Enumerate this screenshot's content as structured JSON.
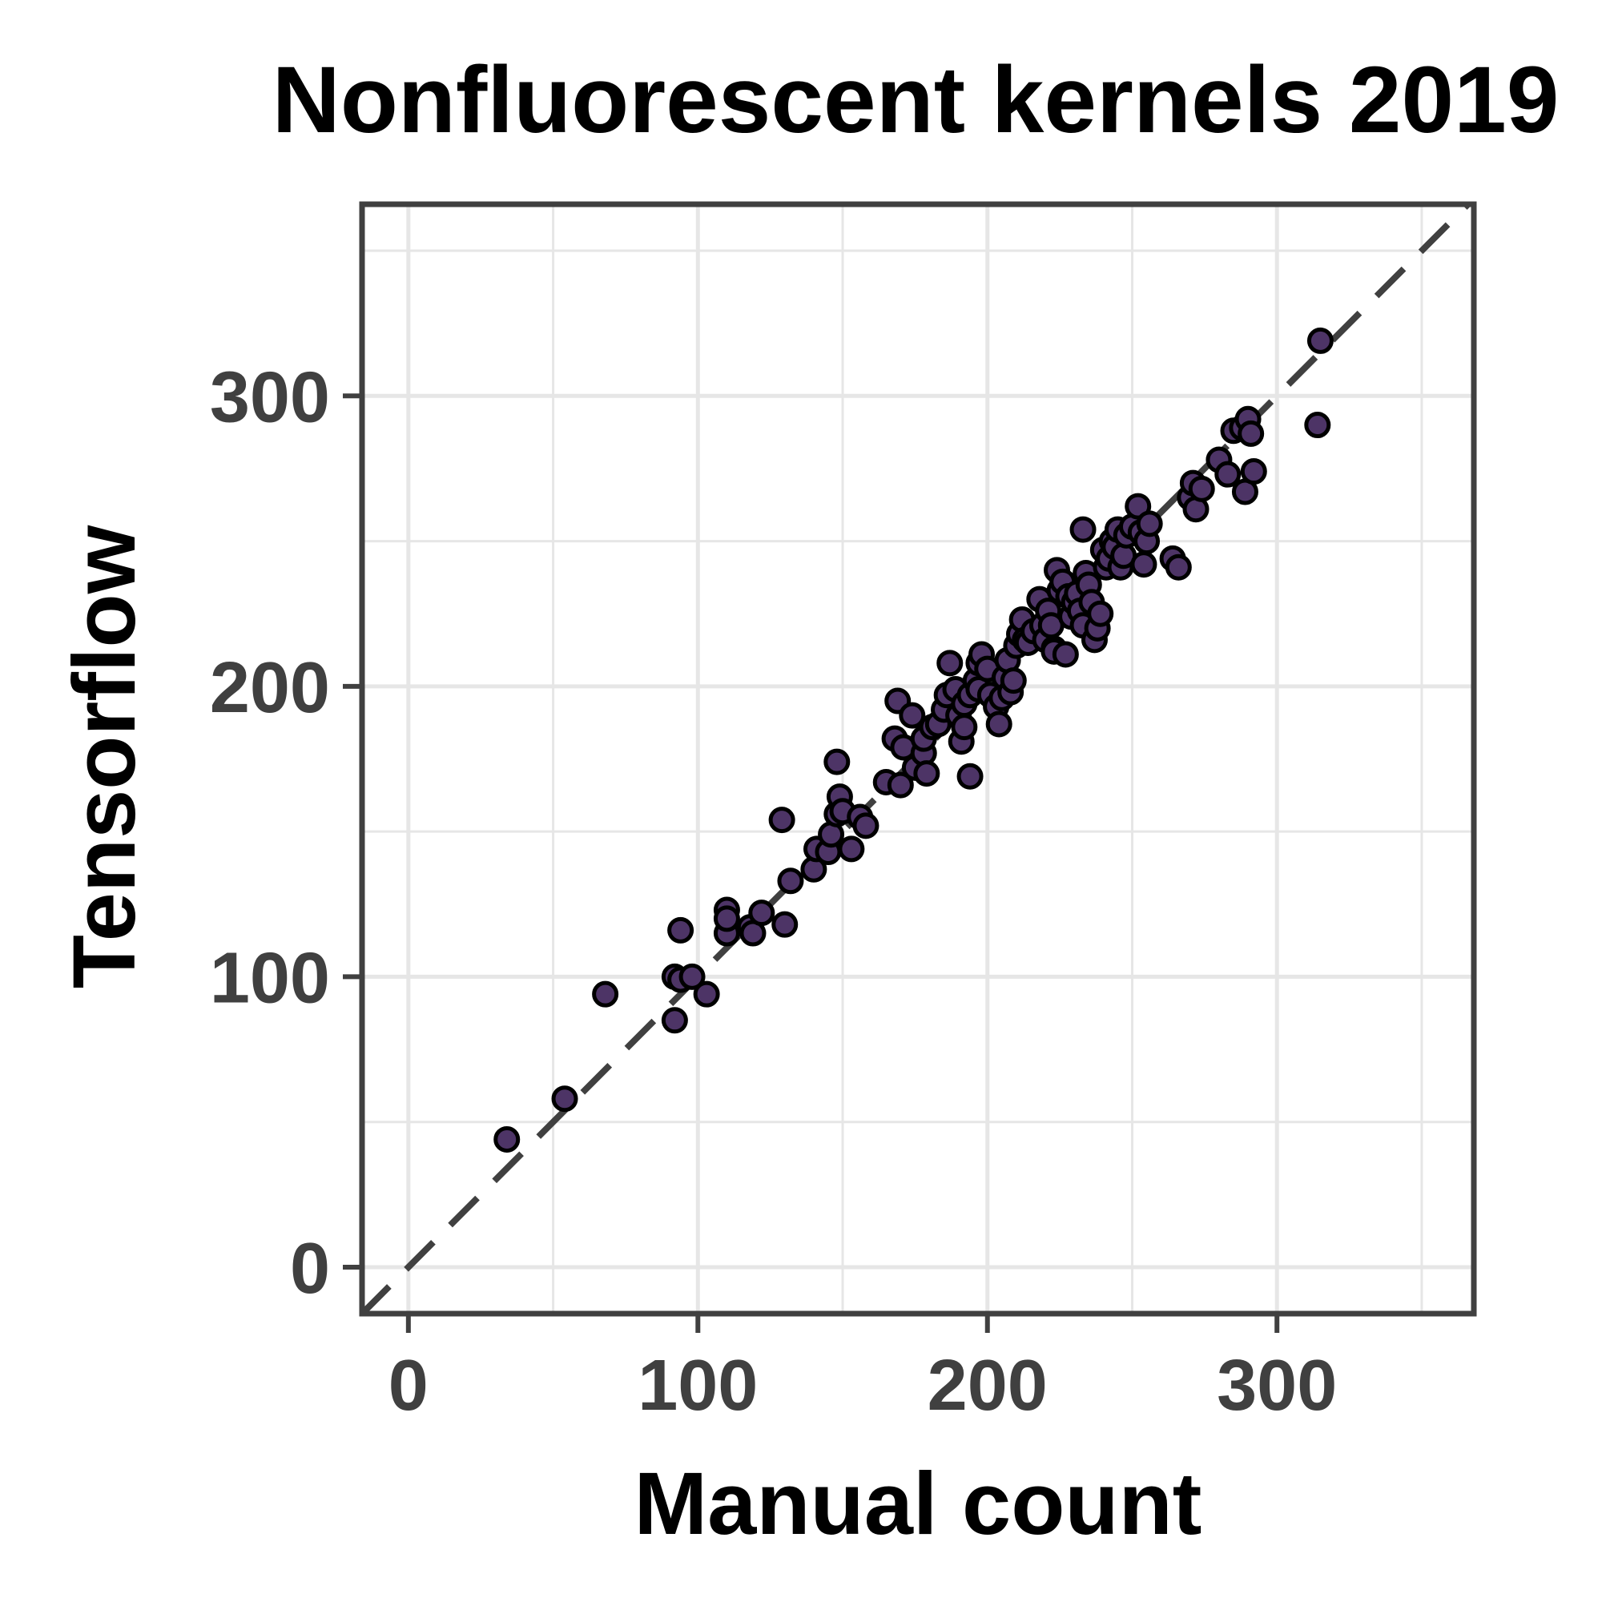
{
  "chart_data": {
    "type": "scatter",
    "title": "Nonfluorescent kernels 2019",
    "xlabel": "Manual count",
    "ylabel": "Tensorflow",
    "xlim": [
      -16,
      368
    ],
    "ylim": [
      -16,
      366
    ],
    "xticks": [
      0,
      100,
      200,
      300
    ],
    "xtick_labels": [
      "0",
      "100",
      "200",
      "300"
    ],
    "yticks": [
      0,
      100,
      200,
      300
    ],
    "ytick_labels": [
      "0",
      "100",
      "200",
      "300"
    ],
    "minor_gridlines": [
      50,
      150,
      250,
      350
    ],
    "grid": true,
    "legend": "none",
    "reference_line": {
      "type": "identity",
      "style": "dashed",
      "color": "#404040"
    },
    "marker": {
      "fill": "#4d3466",
      "edge": "#000000"
    },
    "colors": {
      "grid": "#e6e6e6",
      "frame": "#404040",
      "tick_text": "#404040"
    },
    "series": [
      {
        "points": [
          [
            34,
            44
          ],
          [
            54,
            58
          ],
          [
            68,
            94
          ],
          [
            92,
            85
          ],
          [
            92,
            100
          ],
          [
            94,
            99
          ],
          [
            94,
            116
          ],
          [
            98,
            100
          ],
          [
            103,
            94
          ],
          [
            110,
            115
          ],
          [
            110,
            123
          ],
          [
            110,
            120
          ],
          [
            118,
            117
          ],
          [
            119,
            115
          ],
          [
            122,
            122
          ],
          [
            130,
            118
          ],
          [
            129,
            154
          ],
          [
            132,
            133
          ],
          [
            140,
            137
          ],
          [
            141,
            144
          ],
          [
            145,
            143
          ],
          [
            146,
            149
          ],
          [
            148,
            174
          ],
          [
            148,
            156
          ],
          [
            149,
            162
          ],
          [
            150,
            157
          ],
          [
            153,
            144
          ],
          [
            156,
            155
          ],
          [
            158,
            152
          ],
          [
            165,
            167
          ],
          [
            168,
            182
          ],
          [
            170,
            166
          ],
          [
            169,
            195
          ],
          [
            171,
            179
          ],
          [
            174,
            190
          ],
          [
            175,
            172
          ],
          [
            178,
            177
          ],
          [
            178,
            182
          ],
          [
            179,
            170
          ],
          [
            181,
            186
          ],
          [
            183,
            187
          ],
          [
            185,
            192
          ],
          [
            186,
            197
          ],
          [
            187,
            208
          ],
          [
            189,
            199
          ],
          [
            190,
            190
          ],
          [
            191,
            181
          ],
          [
            192,
            186
          ],
          [
            192,
            194
          ],
          [
            194,
            197
          ],
          [
            194,
            169
          ],
          [
            196,
            202
          ],
          [
            197,
            199
          ],
          [
            197,
            208
          ],
          [
            198,
            211
          ],
          [
            200,
            206
          ],
          [
            201,
            197
          ],
          [
            203,
            193
          ],
          [
            204,
            187
          ],
          [
            205,
            196
          ],
          [
            206,
            203
          ],
          [
            207,
            209
          ],
          [
            208,
            198
          ],
          [
            209,
            202
          ],
          [
            210,
            214
          ],
          [
            211,
            218
          ],
          [
            212,
            223
          ],
          [
            213,
            216
          ],
          [
            214,
            215
          ],
          [
            216,
            219
          ],
          [
            218,
            230
          ],
          [
            219,
            221
          ],
          [
            220,
            216
          ],
          [
            221,
            226
          ],
          [
            222,
            221
          ],
          [
            223,
            213
          ],
          [
            223,
            212
          ],
          [
            224,
            240
          ],
          [
            225,
            233
          ],
          [
            226,
            236
          ],
          [
            227,
            211
          ],
          [
            228,
            231
          ],
          [
            229,
            224
          ],
          [
            230,
            229
          ],
          [
            231,
            232
          ],
          [
            232,
            226
          ],
          [
            233,
            254
          ],
          [
            233,
            221
          ],
          [
            234,
            239
          ],
          [
            235,
            235
          ],
          [
            236,
            229
          ],
          [
            237,
            216
          ],
          [
            238,
            220
          ],
          [
            239,
            225
          ],
          [
            240,
            247
          ],
          [
            241,
            241
          ],
          [
            242,
            244
          ],
          [
            243,
            250
          ],
          [
            244,
            248
          ],
          [
            245,
            254
          ],
          [
            246,
            241
          ],
          [
            247,
            245
          ],
          [
            248,
            252
          ],
          [
            250,
            255
          ],
          [
            252,
            262
          ],
          [
            253,
            253
          ],
          [
            254,
            242
          ],
          [
            255,
            250
          ],
          [
            256,
            256
          ],
          [
            264,
            244
          ],
          [
            266,
            241
          ],
          [
            270,
            265
          ],
          [
            271,
            270
          ],
          [
            272,
            261
          ],
          [
            274,
            268
          ],
          [
            280,
            278
          ],
          [
            283,
            273
          ],
          [
            285,
            288
          ],
          [
            288,
            289
          ],
          [
            289,
            267
          ],
          [
            290,
            292
          ],
          [
            291,
            287
          ],
          [
            292,
            274
          ],
          [
            314,
            290
          ],
          [
            315,
            319
          ]
        ]
      }
    ]
  }
}
